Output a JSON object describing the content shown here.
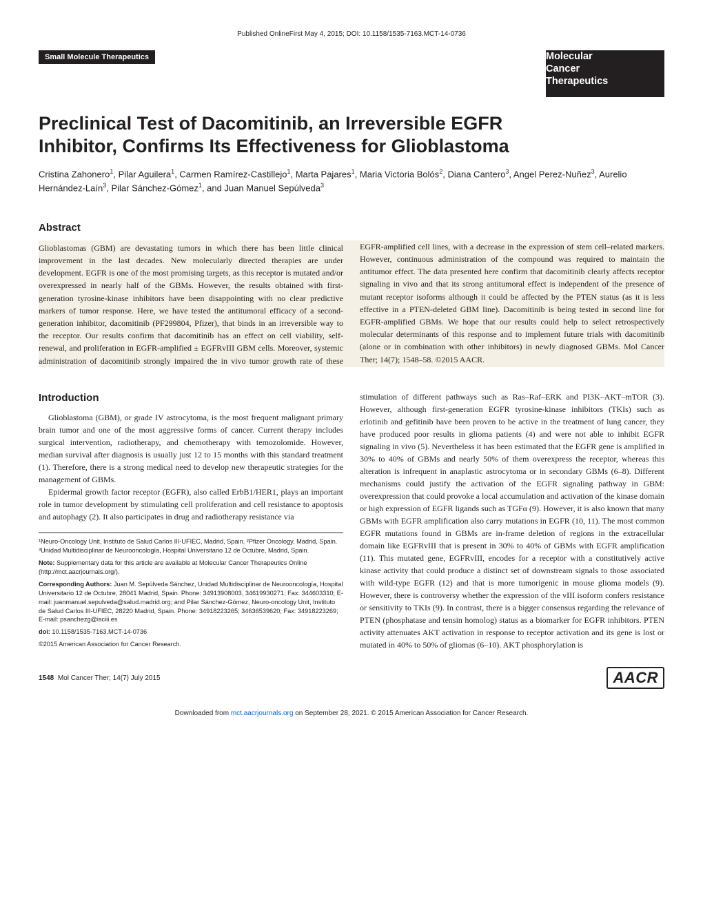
{
  "colors": {
    "text": "#231f20",
    "bg": "#ffffff",
    "abstract_bg": "#f4f0e6",
    "link": "#0066cc",
    "black_block": "#231f20"
  },
  "typography": {
    "title_fontsize": 27,
    "heading_fontsize": 15,
    "body_fontsize": 12,
    "footnote_fontsize": 9.2,
    "sans_family": "Arial, Helvetica, sans-serif",
    "serif_family": "Georgia, 'Times New Roman', serif"
  },
  "header": {
    "online_first": "Published OnlineFirst May 4, 2015; DOI: 10.1158/1535-7163.MCT-14-0736",
    "section_tag": "Small Molecule Therapeutics",
    "journal_line1": "Molecular",
    "journal_line2": "Cancer",
    "journal_line3": "Therapeutics"
  },
  "title": "Preclinical Test of Dacomitinib, an Irreversible EGFR Inhibitor, Confirms Its Effectiveness for Glioblastoma",
  "authors_html": "Cristina Zahonero<sup>1</sup>, Pilar Aguilera<sup>1</sup>, Carmen Ramírez-Castillejo<sup>1</sup>, Marta Pajares<sup>1</sup>, Maria Victoria Bolós<sup>2</sup>, Diana Cantero<sup>3</sup>, Angel Perez-Nuñez<sup>3</sup>, Aurelio Hernández-Laín<sup>3</sup>, Pilar Sánchez-Gómez<sup>1</sup>, and Juan Manuel Sepúlveda<sup>3</sup>",
  "abstract": {
    "heading": "Abstract",
    "text": "Glioblastomas (GBM) are devastating tumors in which there has been little clinical improvement in the last decades. New molecularly directed therapies are under development. EGFR is one of the most promising targets, as this receptor is mutated and/or overexpressed in nearly half of the GBMs. However, the results obtained with first-generation tyrosine-kinase inhibitors have been disappointing with no clear predictive markers of tumor response. Here, we have tested the antitumoral efficacy of a second-generation inhibitor, dacomitinib (PF299804, Pfizer), that binds in an irreversible way to the receptor. Our results confirm that dacomitinib has an effect on cell viability, self-renewal, and proliferation in EGFR-amplified ± EGFRvIII GBM cells. Moreover, systemic administration of dacomitinib strongly impaired the in vivo tumor growth rate of these EGFR-amplified cell lines, with a decrease in the expression of stem cell–related markers. However, continuous administration of the compound was required to maintain the antitumor effect. The data presented here confirm that dacomitinib clearly affects receptor signaling in vivo and that its strong antitumoral effect is independent of the presence of mutant receptor isoforms although it could be affected by the PTEN status (as it is less effective in a PTEN-deleted GBM line). Dacomitinib is being tested in second line for EGFR-amplified GBMs. We hope that our results could help to select retrospectively molecular determinants of this response and to implement future trials with dacomitinib (alone or in combination with other inhibitors) in newly diagnosed GBMs. Mol Cancer Ther; 14(7); 1548–58. ©2015 AACR."
  },
  "introduction": {
    "heading": "Introduction",
    "p1": "Glioblastoma (GBM), or grade IV astrocytoma, is the most frequent malignant primary brain tumor and one of the most aggressive forms of cancer. Current therapy includes surgical intervention, radiotherapy, and chemotherapy with temozolomide. However, median survival after diagnosis is usually just 12 to 15 months with this standard treatment (1). Therefore, there is a strong medical need to develop new therapeutic strategies for the management of GBMs.",
    "p2": "Epidermal growth factor receptor (EGFR), also called ErbB1/HER1, plays an important role in tumor development by stimulating cell proliferation and cell resistance to apoptosis and autophagy (2). It also participates in drug and radiotherapy resistance via",
    "p3": "stimulation of different pathways such as Ras–Raf–ERK and PI3K–AKT–mTOR (3). However, although first-generation EGFR tyrosine-kinase inhibitors (TKIs) such as erlotinib and gefitinib have been proven to be active in the treatment of lung cancer, they have produced poor results in glioma patients (4) and were not able to inhibit EGFR signaling in vivo (5). Nevertheless it has been estimated that the EGFR gene is amplified in 30% to 40% of GBMs and nearly 50% of them overexpress the receptor, whereas this alteration is infrequent in anaplastic astrocytoma or in secondary GBMs (6–8). Different mechanisms could justify the activation of the EGFR signaling pathway in GBM: overexpression that could provoke a local accumulation and activation of the kinase domain or high expression of EGFR ligands such as TGFα (9). However, it is also known that many GBMs with EGFR amplification also carry mutations in EGFR (10, 11). The most common EGFR mutations found in GBMs are in-frame deletion of regions in the extracellular domain like EGFRvIII that is present in 30% to 40% of GBMs with EGFR amplification (11). This mutated gene, EGFRvIII, encodes for a receptor with a constitutively active kinase activity that could produce a distinct set of downstream signals to those associated with wild-type EGFR (12) and that is more tumorigenic in mouse glioma models (9). However, there is controversy whether the expression of the vIII isoform confers resistance or sensitivity to TKIs (9). In contrast, there is a bigger consensus regarding the relevance of PTEN (phosphatase and tensin homolog) status as a biomarker for EGFR inhibitors. PTEN activity attenuates AKT activation in response to receptor activation and its gene is lost or mutated in 40% to 50% of gliomas (6–10). AKT phosphorylation is"
  },
  "footnotes": {
    "affil": "¹Neuro-Oncology Unit, Instituto de Salud Carlos III-UFIEC, Madrid, Spain. ²Pfizer Oncology, Madrid, Spain. ³Unidad Multidisciplinar de Neurooncología, Hospital Universitario 12 de Octubre, Madrid, Spain.",
    "note_label": "Note:",
    "note_text": " Supplementary data for this article are available at Molecular Cancer Therapeutics Online (http://mct.aacrjournals.org/).",
    "corr_label": "Corresponding Authors:",
    "corr_text": " Juan M. Sepúlveda Sánchez, Unidad Multidisciplinar de Neurooncología, Hospital Universitario 12 de Octubre, 28041 Madrid, Spain. Phone: 34913908003, 34619930271; Fax: 344603310; E-mail: juanmanuel.sepulveda@salud.madrid.org; and Pilar Sánchez-Gómez, Neuro-oncology Unit, Instituto de Salud Carlos III-UFIEC, 28220 Madrid, Spain. Phone: 34918223265; 34636539620; Fax: 34918223269; E-mail: psanchezg@isciii.es",
    "doi_label": "doi:",
    "doi_text": " 10.1158/1535-7163.MCT-14-0736",
    "copyright": "©2015 American Association for Cancer Research."
  },
  "footer": {
    "page_number": "1548",
    "citation": "Mol Cancer Ther; 14(7) July 2015",
    "logo_text": "AACR",
    "download_prefix": "Downloaded from ",
    "download_link": "mct.aacrjournals.org",
    "download_suffix": " on September 28, 2021. © 2015 American Association for Cancer Research."
  }
}
